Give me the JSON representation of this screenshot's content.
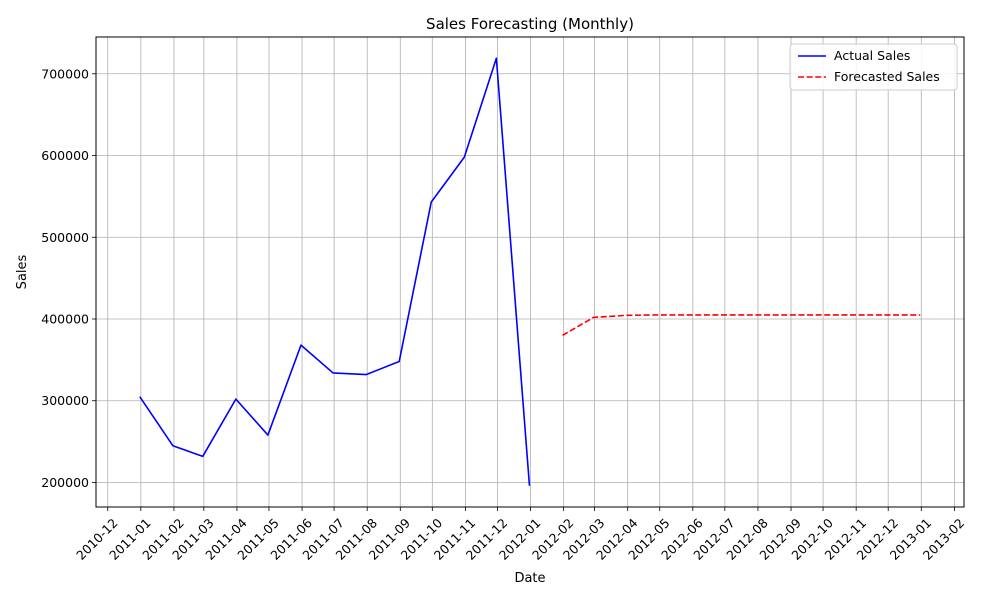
{
  "chart_data": {
    "type": "line",
    "title": "Sales Forecasting (Monthly)",
    "xlabel": "Date",
    "ylabel": "Sales",
    "grid": true,
    "legend_position": "top-right",
    "xlim": [
      "2010-11-20",
      "2013-02-10"
    ],
    "ylim": [
      170000,
      745000
    ],
    "x_ticks": [
      "2010-12",
      "2011-01",
      "2011-02",
      "2011-03",
      "2011-04",
      "2011-05",
      "2011-06",
      "2011-07",
      "2011-08",
      "2011-09",
      "2011-10",
      "2011-11",
      "2011-12",
      "2012-01",
      "2012-02",
      "2012-03",
      "2012-04",
      "2012-05",
      "2012-06",
      "2012-07",
      "2012-08",
      "2012-09",
      "2012-10",
      "2012-11",
      "2012-12",
      "2013-01",
      "2013-02"
    ],
    "y_ticks": [
      200000,
      300000,
      400000,
      500000,
      600000,
      700000
    ],
    "series": [
      {
        "name": "Actual Sales",
        "color": "#0000ff",
        "style": "solid",
        "x": [
          "2010-12-31",
          "2011-01-31",
          "2011-02-28",
          "2011-03-31",
          "2011-04-30",
          "2011-05-31",
          "2011-06-30",
          "2011-07-31",
          "2011-08-31",
          "2011-09-30",
          "2011-10-31",
          "2011-11-30",
          "2011-12-31"
        ],
        "values": [
          305000,
          245000,
          232000,
          302000,
          258000,
          368000,
          334000,
          332000,
          348000,
          543000,
          598000,
          719000,
          196000
        ]
      },
      {
        "name": "Forecasted Sales",
        "color": "#ff0000",
        "style": "dashed",
        "x": [
          "2012-01-31",
          "2012-02-29",
          "2012-03-31",
          "2012-04-30",
          "2012-05-31",
          "2012-06-30",
          "2012-07-31",
          "2012-08-31",
          "2012-09-30",
          "2012-10-31",
          "2012-11-30",
          "2012-12-31"
        ],
        "values": [
          380000,
          402000,
          404500,
          405000,
          405000,
          405000,
          405000,
          405000,
          405000,
          405000,
          405000,
          405000
        ]
      }
    ]
  }
}
